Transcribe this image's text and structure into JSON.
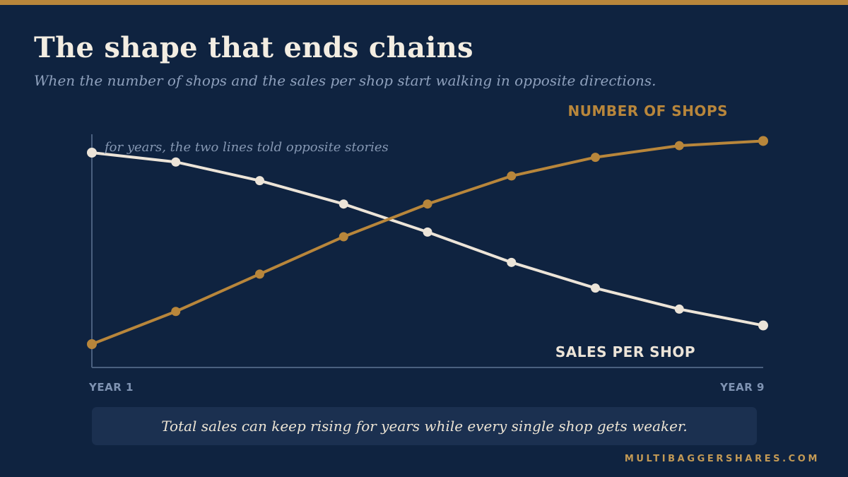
{
  "header": {
    "title": "The shape that ends chains",
    "subtitle": "When the number of shops and the sales per shop start walking in opposite directions."
  },
  "footer": {
    "note": "Total sales can keep rising for years while every single shop gets weaker.",
    "brand": "MULTIBAGGERSHARES.COM"
  },
  "colors": {
    "background": "#0f2340",
    "accent": "#b8863b",
    "shops_line": "#b8863b",
    "sales_line": "#ece4d8",
    "axis": "#4a607f"
  },
  "chart_data": {
    "type": "line",
    "x": [
      1,
      2,
      3,
      4,
      5,
      6,
      7,
      8,
      9
    ],
    "x_tick_labels": [
      {
        "x": 1,
        "label": "YEAR 1"
      },
      {
        "x": 9,
        "label": "YEAR 9"
      }
    ],
    "ylim": [
      0,
      100
    ],
    "grid": false,
    "y_axis_labels_shown": false,
    "annotation": "for years, the two lines told opposite stories",
    "series": [
      {
        "name": "NUMBER OF SHOPS",
        "color": "#b8863b",
        "values": [
          10,
          24,
          40,
          56,
          70,
          82,
          90,
          95,
          97
        ]
      },
      {
        "name": "SALES PER SHOP",
        "color": "#ece4d8",
        "values": [
          92,
          88,
          80,
          70,
          58,
          45,
          34,
          25,
          18
        ]
      }
    ]
  }
}
